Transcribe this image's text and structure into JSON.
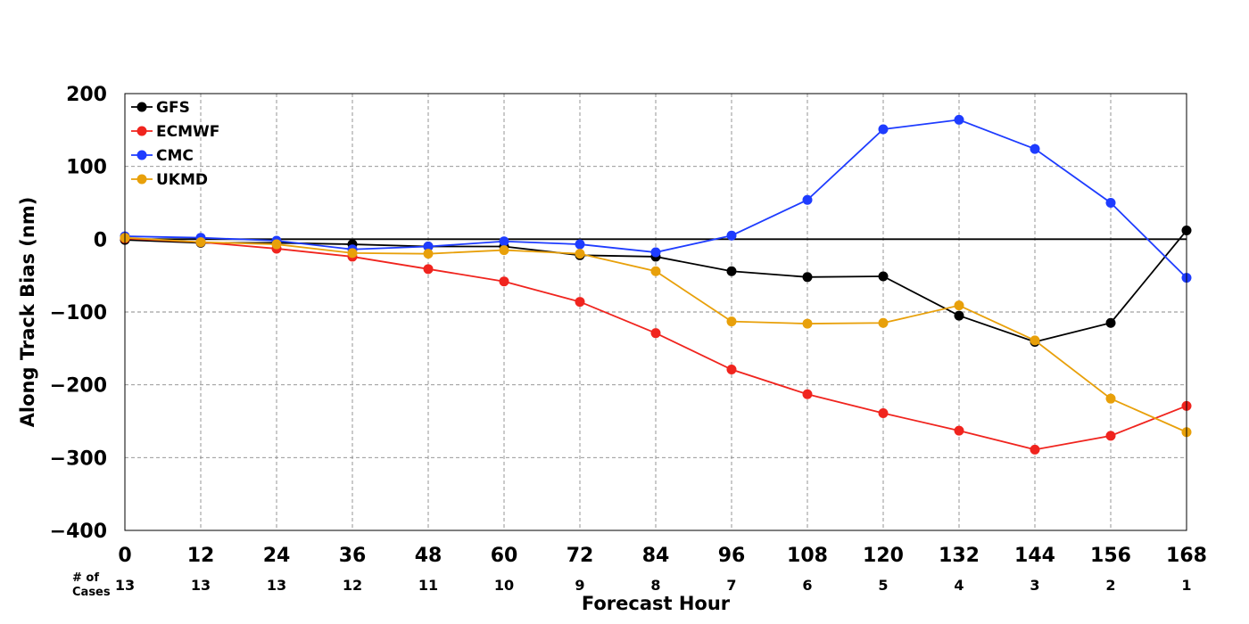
{
  "chart_data": {
    "type": "line",
    "title": "",
    "xlabel": "Forecast Hour",
    "ylabel": "Along Track Bias (nm)",
    "x": [
      0,
      12,
      24,
      36,
      48,
      60,
      72,
      84,
      96,
      108,
      120,
      132,
      144,
      156,
      168
    ],
    "xlim": [
      0,
      168
    ],
    "ylim": [
      -400,
      200
    ],
    "xticks": [
      "0",
      "12",
      "24",
      "36",
      "48",
      "60",
      "72",
      "84",
      "96",
      "108",
      "120",
      "132",
      "144",
      "156",
      "168"
    ],
    "yticks": [
      200,
      100,
      0,
      -100,
      -200,
      -300,
      -400
    ],
    "ytick_labels": [
      "200",
      "100",
      "0",
      "−100",
      "−200",
      "−300",
      "−400"
    ],
    "grid": true,
    "zero_line": true,
    "legend_position": "top-left",
    "cases_label_line1": "# of",
    "cases_label_line2": "Cases",
    "cases": [
      "13",
      "13",
      "13",
      "12",
      "11",
      "10",
      "9",
      "8",
      "7",
      "6",
      "5",
      "4",
      "3",
      "2",
      "1"
    ],
    "series": [
      {
        "name": "GFS",
        "color": "#000000",
        "values": [
          -1,
          -5,
          -5,
          -7,
          -10,
          -10,
          -22,
          -24,
          -44,
          -52,
          -51,
          -105,
          -141,
          -115,
          12
        ]
      },
      {
        "name": "ECMWF",
        "color": "#f0241e",
        "values": [
          1,
          -4,
          -13,
          -24,
          -41,
          -58,
          -86,
          -129,
          -179,
          -213,
          -239,
          -263,
          -289,
          -270,
          -229
        ]
      },
      {
        "name": "CMC",
        "color": "#1e3cff",
        "values": [
          4,
          2,
          -2,
          -14,
          -10,
          -3,
          -7,
          -18,
          5,
          54,
          151,
          164,
          124,
          50,
          -53
        ]
      },
      {
        "name": "UKMD",
        "color": "#e8a00a",
        "values": [
          2,
          -4,
          -7,
          -19,
          -20,
          -15,
          -20,
          -44,
          -113,
          -116,
          -115,
          -91,
          -139,
          -219,
          -265
        ]
      }
    ]
  }
}
